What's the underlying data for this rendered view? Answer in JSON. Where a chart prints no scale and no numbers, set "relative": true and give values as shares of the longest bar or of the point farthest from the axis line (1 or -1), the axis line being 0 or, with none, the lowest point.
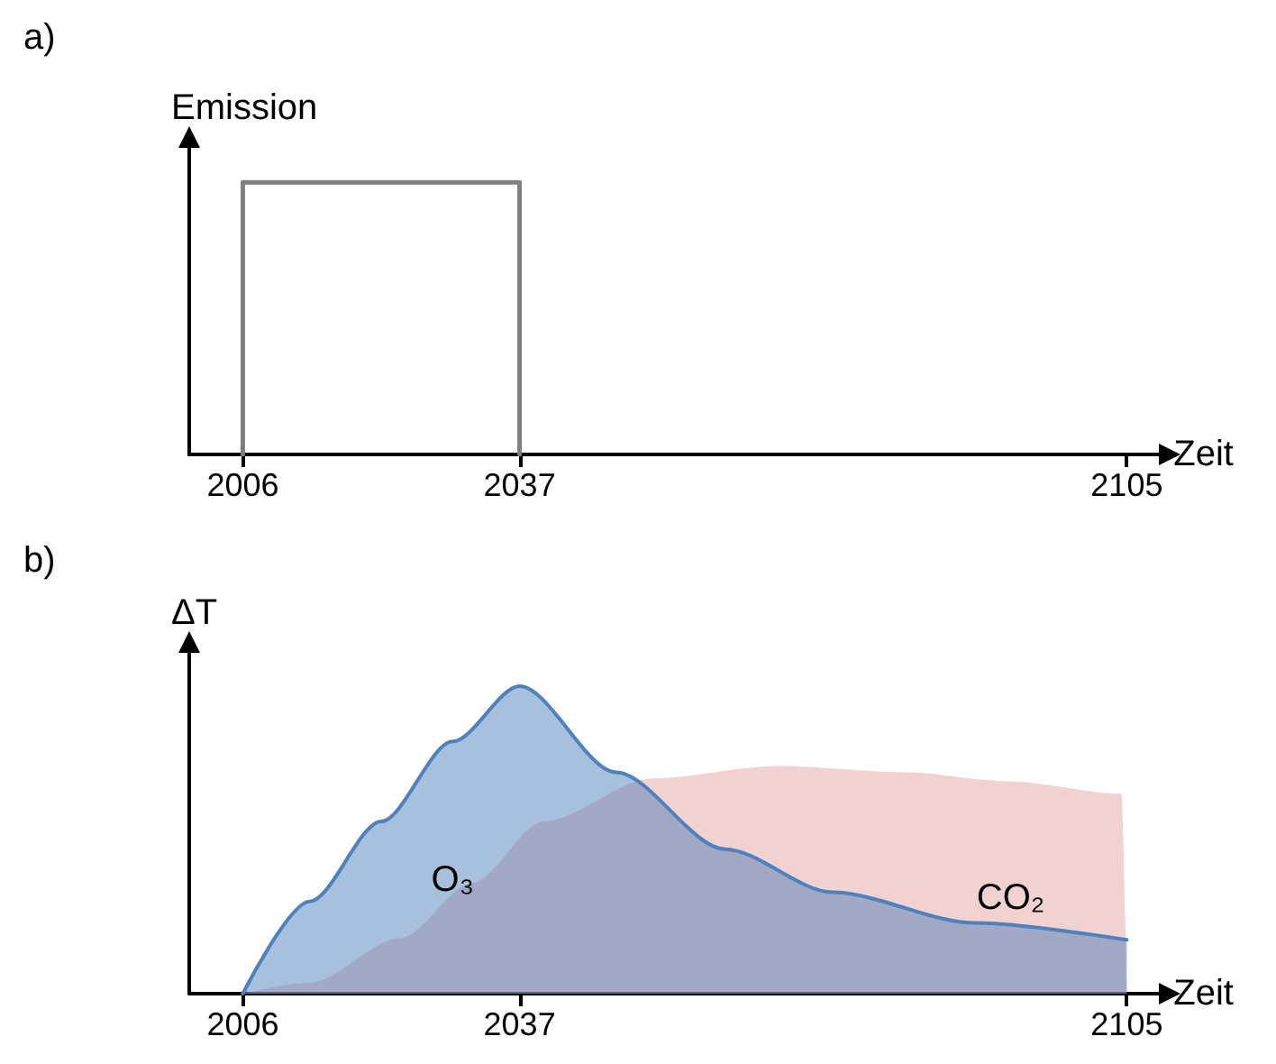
{
  "chart_data": [
    {
      "type": "line",
      "title": "a)",
      "ylabel": "Emission",
      "xlabel": "Zeit",
      "relative": true,
      "xlim": [
        2000,
        2109
      ],
      "xticks": [
        2006,
        2037,
        2105
      ],
      "tick_labels": "x",
      "grid": false,
      "marker": "none",
      "line_style": "solid",
      "series": [
        {
          "color": "#7f7f7f",
          "x": [
            2006,
            2006,
            2037,
            2037
          ],
          "values": [
            0,
            1,
            1,
            0
          ]
        }
      ]
    },
    {
      "type": "area",
      "title": "b)",
      "ylabel": "ΔT",
      "xlabel": "Zeit",
      "relative": true,
      "xlim": [
        2000,
        2109
      ],
      "xticks": [
        2006,
        2037,
        2105
      ],
      "tick_labels": "x",
      "grid": false,
      "marker": "none",
      "series": [
        {
          "name": "CO₂",
          "color": "#e6a3a3",
          "x": [
            2006,
            2013.5,
            2023.6,
            2031.7,
            2039.7,
            2051.9,
            2066,
            2080,
            2092,
            2104.4,
            2105
          ],
          "values": [
            0,
            0.035,
            0.18,
            0.36,
            0.56,
            0.7,
            0.74,
            0.72,
            0.69,
            0.65,
            0
          ]
        },
        {
          "name": "O₃",
          "color": "#4f81bd",
          "line_style": "solid",
          "x": [
            2006,
            2013.5,
            2021.5,
            2029.5,
            2037,
            2047.8,
            2060,
            2072,
            2088,
            2105
          ],
          "values": [
            0,
            0.3,
            0.56,
            0.82,
            1,
            0.72,
            0.47,
            0.33,
            0.23,
            0.175
          ]
        }
      ]
    }
  ]
}
